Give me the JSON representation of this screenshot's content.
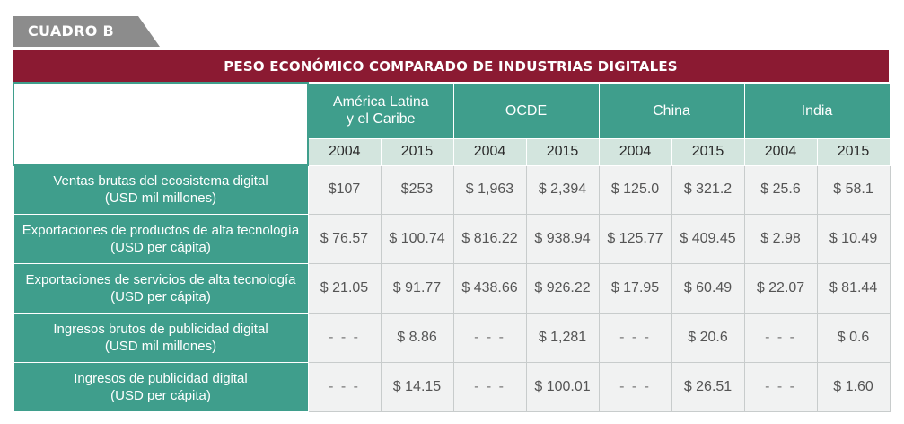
{
  "label": "CUADRO B",
  "title": "PESO ECONÓMICO COMPARADO DE INDUSTRIAS DIGITALES",
  "regions": [
    {
      "line1": "América Latina",
      "line2": "y el Caribe"
    },
    {
      "line1": "OCDE",
      "line2": ""
    },
    {
      "line1": "China",
      "line2": ""
    },
    {
      "line1": "India",
      "line2": ""
    }
  ],
  "years": [
    "2004",
    "2015",
    "2004",
    "2015",
    "2004",
    "2015",
    "2004",
    "2015"
  ],
  "rows": [
    {
      "label1": "Ventas brutas del ecosistema digital",
      "label2": "(USD mil millones)",
      "values": [
        "$107",
        "$253",
        "$ 1,963",
        "$ 2,394",
        "$ 125.0",
        "$ 321.2",
        "$ 25.6",
        "$ 58.1"
      ]
    },
    {
      "label1": "Exportaciones de productos de alta tecnología",
      "label2": "(USD per cápita)",
      "values": [
        "$ 76.57",
        "$ 100.74",
        "$ 816.22",
        "$ 938.94",
        "$ 125.77",
        "$ 409.45",
        "$ 2.98",
        "$ 10.49"
      ]
    },
    {
      "label1": "Exportaciones de servicios de alta tecnología",
      "label2": "(USD per cápita)",
      "values": [
        "$ 21.05",
        "$ 91.77",
        "$ 438.66",
        "$ 926.22",
        "$ 17.95",
        "$ 60.49",
        "$ 22.07",
        "$ 81.44"
      ]
    },
    {
      "label1": "Ingresos brutos de publicidad digital",
      "label2": "(USD mil millones)",
      "values": [
        "- - -",
        "$ 8.86",
        "- - -",
        "$ 1,281",
        "- - -",
        "$ 20.6",
        "- - -",
        "$ 0.6"
      ]
    },
    {
      "label1": "Ingresos de publicidad digital",
      "label2": "(USD per cápita)",
      "values": [
        "- - -",
        "$ 14.15",
        "- - -",
        "$ 100.01",
        "- - -",
        "$ 26.51",
        "- - -",
        "$ 1.60"
      ]
    }
  ],
  "colors": {
    "banner": "#8b1a32",
    "tab": "#8c8c8c",
    "header": "#3f9e8c",
    "year_bg": "#d3e5de",
    "cell_bg": "#f1f2f2"
  }
}
